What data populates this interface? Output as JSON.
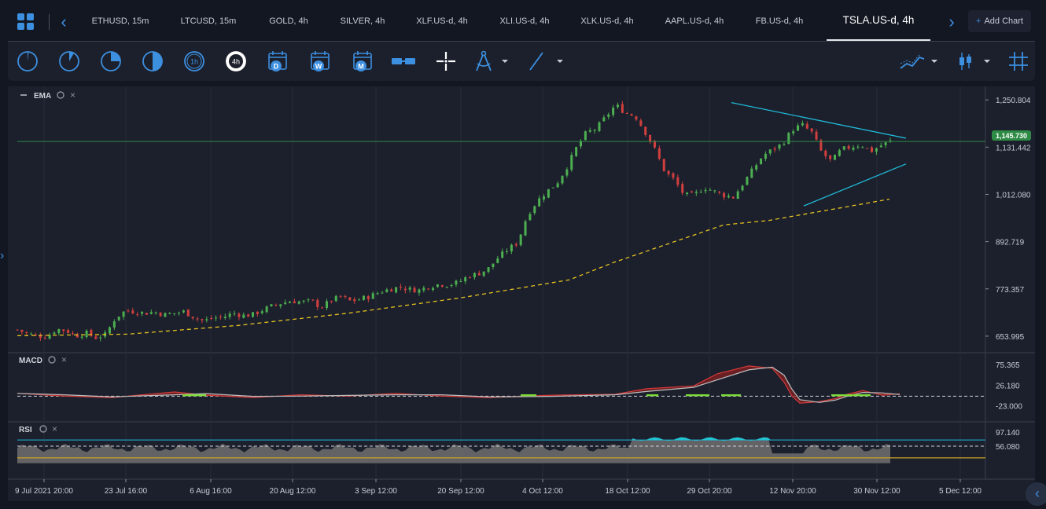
{
  "tabs": [
    {
      "label": "ETHUSD, 15m",
      "active": false
    },
    {
      "label": "LTCUSD, 15m",
      "active": false
    },
    {
      "label": "GOLD, 4h",
      "active": false
    },
    {
      "label": "SILVER, 4h",
      "active": false
    },
    {
      "label": "XLF.US-d, 4h",
      "active": false
    },
    {
      "label": "XLI.US-d, 4h",
      "active": false
    },
    {
      "label": "XLK.US-d, 4h",
      "active": false
    },
    {
      "label": "AAPL.US-d, 4h",
      "active": false
    },
    {
      "label": "FB.US-d, 4h",
      "active": false
    },
    {
      "label": "TSLA.US-d, 4h",
      "active": true
    }
  ],
  "add_chart": {
    "label": "Add Chart"
  },
  "toolbar": {
    "timeframe_4h_label": "4h",
    "timeframe_1h_label": "1h",
    "period_d": "D",
    "period_w": "W",
    "period_m": "M"
  },
  "panes": {
    "main": {
      "indicator": "EMA"
    },
    "macd": {
      "indicator": "MACD"
    },
    "rsi": {
      "indicator": "RSI"
    }
  },
  "price_axis": {
    "labels": [
      "1,250.804",
      "1,131.442",
      "1,012.080",
      "892.719",
      "773.357",
      "653.995"
    ],
    "current_price": "1,145.730"
  },
  "macd_axis": {
    "labels": [
      "75.365",
      "26.180",
      "-23.000"
    ]
  },
  "rsi_axis": {
    "labels": [
      "97.140",
      "56.080"
    ]
  },
  "time_axis": {
    "labels": [
      "9 Jul 2021 20:00",
      "23 Jul 16:00",
      "6 Aug 16:00",
      "20 Aug 12:00",
      "3 Sep 12:00",
      "20 Sep 12:00",
      "4 Oct 12:00",
      "18 Oct 12:00",
      "29 Oct 20:00",
      "12 Nov 20:00",
      "30 Nov 12:00",
      "5 Dec 12:00"
    ]
  },
  "colors": {
    "up": "#4caf50",
    "down": "#d13f3f",
    "ema": "#e6c21f",
    "trendline": "#1fb8d6",
    "hline": "#2e8b45",
    "macd_signal": "#bdbdbd",
    "macd_line": "#d33a3a",
    "rsi_fill": "#707070",
    "rsi_over": "#22c8d4"
  },
  "chart_data": {
    "type": "candlestick",
    "symbol": "TSLA.US-d",
    "interval": "4h",
    "ylim": [
      630,
      1265
    ],
    "current_price": 1145.73,
    "close_path": [
      [
        0,
        670
      ],
      [
        10,
        660
      ],
      [
        20,
        655
      ],
      [
        30,
        652
      ],
      [
        40,
        672
      ],
      [
        50,
        668
      ],
      [
        60,
        655
      ],
      [
        70,
        662
      ],
      [
        80,
        650
      ],
      [
        90,
        658
      ],
      [
        100,
        700
      ],
      [
        110,
        718
      ],
      [
        120,
        716
      ],
      [
        130,
        712
      ],
      [
        140,
        715
      ],
      [
        150,
        708
      ],
      [
        160,
        712
      ],
      [
        170,
        716
      ],
      [
        180,
        702
      ],
      [
        190,
        692
      ],
      [
        200,
        700
      ],
      [
        210,
        702
      ],
      [
        220,
        712
      ],
      [
        230,
        706
      ],
      [
        240,
        708
      ],
      [
        250,
        720
      ],
      [
        260,
        730
      ],
      [
        270,
        738
      ],
      [
        280,
        743
      ],
      [
        290,
        740
      ],
      [
        300,
        742
      ],
      [
        310,
        726
      ],
      [
        320,
        745
      ],
      [
        330,
        753
      ],
      [
        340,
        742
      ],
      [
        350,
        748
      ],
      [
        360,
        755
      ],
      [
        370,
        766
      ],
      [
        380,
        773
      ],
      [
        390,
        778
      ],
      [
        400,
        772
      ],
      [
        410,
        770
      ],
      [
        420,
        780
      ],
      [
        430,
        785
      ],
      [
        440,
        784
      ],
      [
        450,
        790
      ],
      [
        460,
        806
      ],
      [
        470,
        812
      ],
      [
        480,
        824
      ],
      [
        490,
        852
      ],
      [
        500,
        873
      ],
      [
        510,
        890
      ],
      [
        520,
        960
      ],
      [
        530,
        995
      ],
      [
        540,
        1020
      ],
      [
        550,
        1040
      ],
      [
        560,
        1080
      ],
      [
        570,
        1130
      ],
      [
        580,
        1168
      ],
      [
        590,
        1178
      ],
      [
        600,
        1208
      ],
      [
        610,
        1238
      ],
      [
        620,
        1218
      ],
      [
        630,
        1210
      ],
      [
        640,
        1170
      ],
      [
        650,
        1125
      ],
      [
        660,
        1070
      ],
      [
        670,
        1048
      ],
      [
        680,
        1010
      ],
      [
        690,
        1010
      ],
      [
        700,
        1030
      ],
      [
        710,
        1020
      ],
      [
        720,
        1010
      ],
      [
        730,
        1005
      ],
      [
        740,
        1040
      ],
      [
        750,
        1075
      ],
      [
        760,
        1110
      ],
      [
        770,
        1125
      ],
      [
        780,
        1140
      ],
      [
        790,
        1175
      ],
      [
        800,
        1188
      ],
      [
        810,
        1168
      ],
      [
        820,
        1118
      ],
      [
        830,
        1095
      ],
      [
        840,
        1125
      ],
      [
        850,
        1132
      ],
      [
        860,
        1138
      ],
      [
        870,
        1120
      ],
      [
        880,
        1135
      ],
      [
        890,
        1145.73
      ]
    ],
    "ema_endpoints": [
      [
        0,
        655
      ],
      [
        100,
        659
      ],
      [
        200,
        681
      ],
      [
        300,
        712
      ],
      [
        400,
        750
      ],
      [
        450,
        773
      ],
      [
        500,
        796
      ],
      [
        540,
        840
      ],
      [
        600,
        897
      ],
      [
        640,
        935
      ],
      [
        680,
        946
      ],
      [
        750,
        980
      ],
      [
        790,
        1000
      ]
    ],
    "trendline_upper": {
      "from": [
        920,
        1244
      ],
      "to": [
        1142,
        1154
      ]
    },
    "trendline_lower": {
      "from": [
        1012,
        983
      ],
      "to": [
        1142,
        1089
      ]
    },
    "horizontal_line": 1145.73,
    "macd": {
      "ylim": [
        -40,
        80
      ],
      "zero": 0,
      "peak": 70,
      "trough": -20
    },
    "rsi": {
      "ylim": [
        0,
        100
      ],
      "upper": 70,
      "mid": 56.08,
      "lower": 30
    }
  }
}
